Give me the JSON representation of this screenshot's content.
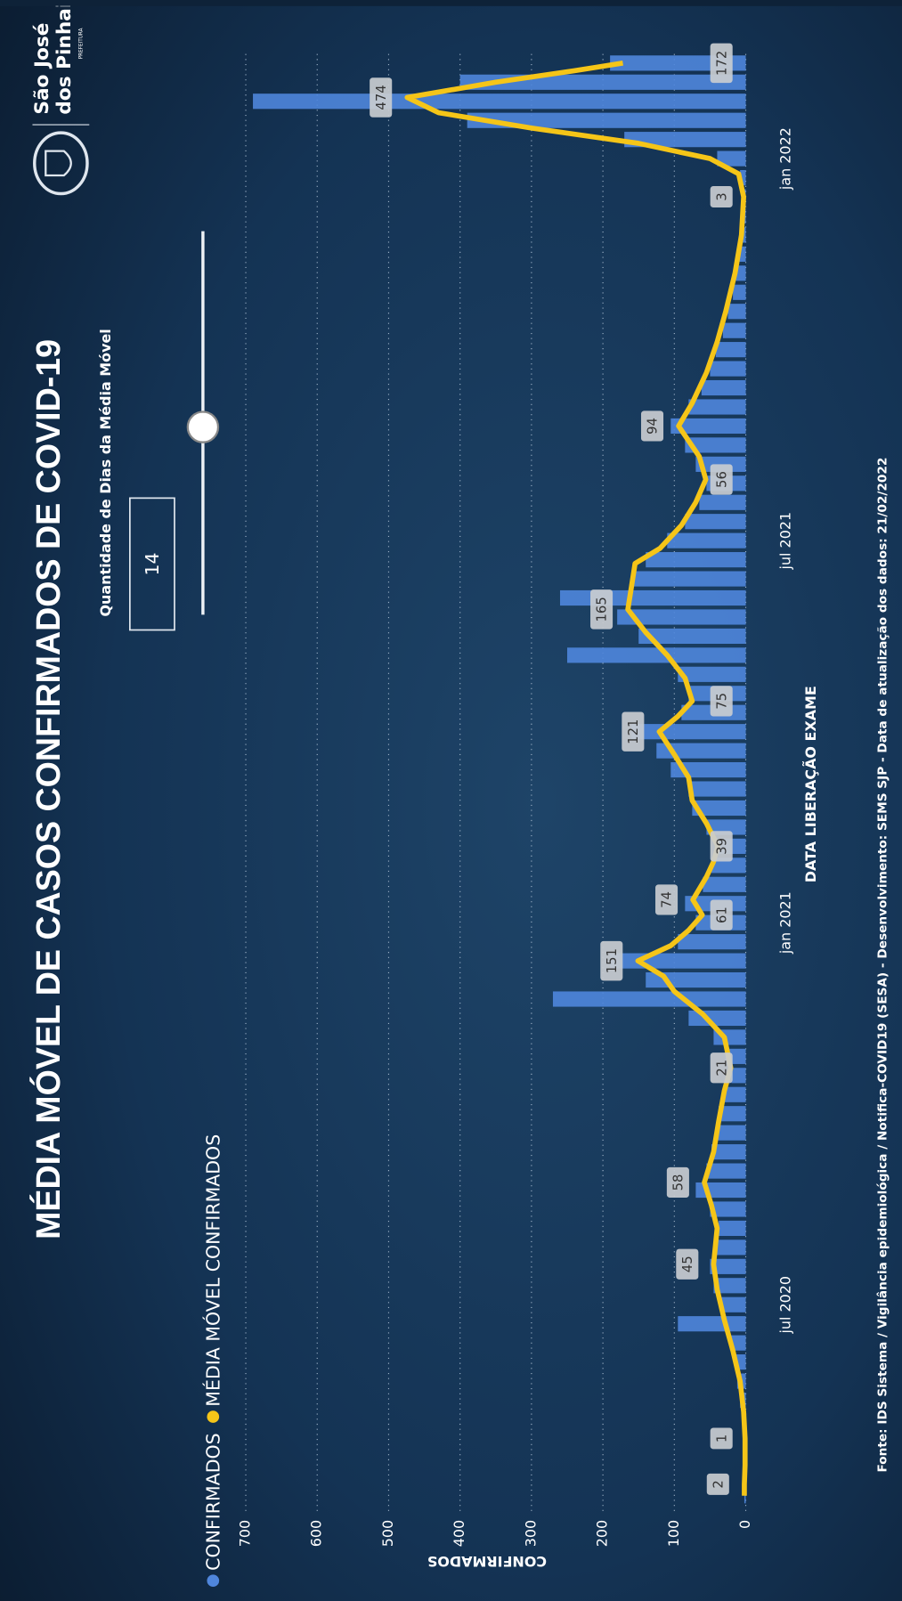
{
  "header": {
    "logo": {
      "line1": "São José",
      "line2": "dos Pinhais",
      "sub": "PREFEITURA"
    }
  },
  "controls": {
    "slider_label": "Quantidade de Dias da Média Móvel",
    "slider_value": 14
  },
  "footer": "Fonte: IDS Sistema / Vigilância epidemiológica / Notifica-COVID19 (SESA) - Desenvolvimento: SEMS SJP - Data de atualização dos dados: 21/02/2022",
  "chart_data": {
    "type": "bar-line",
    "title": "MÉDIA MÓVEL DE CASOS CONFIRMADOS DE COVID-19",
    "x_label": "DATA LIBERAÇÃO EXAME",
    "y_label": "CONFIRMADOS",
    "xlim": [
      2020.23,
      2022.14
    ],
    "xticks": [
      {
        "value": 2020.5,
        "label": "jul 2020"
      },
      {
        "value": 2021,
        "label": "jan 2021"
      },
      {
        "value": 2021.5,
        "label": "jul 2021"
      },
      {
        "value": 2022,
        "label": "jan 2022"
      }
    ],
    "ylim": [
      0,
      760
    ],
    "yticks": [
      0,
      100,
      200,
      300,
      400,
      500,
      600,
      700
    ],
    "grid": true,
    "series": [
      {
        "name": "CONFIRMADOS",
        "type": "bar",
        "color": "#4f86dc",
        "x": [
          2020.25,
          2020.275,
          2020.3,
          2020.325,
          2020.35,
          2020.375,
          2020.4,
          2020.425,
          2020.45,
          2020.475,
          2020.5,
          2020.525,
          2020.55,
          2020.575,
          2020.6,
          2020.625,
          2020.65,
          2020.675,
          2020.7,
          2020.725,
          2020.75,
          2020.775,
          2020.8,
          2020.825,
          2020.85,
          2020.875,
          2020.9,
          2020.925,
          2020.95,
          2020.975,
          2021,
          2021.025,
          2021.05,
          2021.075,
          2021.1,
          2021.125,
          2021.15,
          2021.175,
          2021.2,
          2021.225,
          2021.25,
          2021.275,
          2021.3,
          2021.325,
          2021.35,
          2021.375,
          2021.4,
          2021.425,
          2021.45,
          2021.475,
          2021.5,
          2021.525,
          2021.55,
          2021.575,
          2021.6,
          2021.625,
          2021.65,
          2021.675,
          2021.7,
          2021.725,
          2021.75,
          2021.775,
          2021.8,
          2021.825,
          2021.85,
          2021.875,
          2021.9,
          2021.925,
          2021.95,
          2021.975,
          2022,
          2022.025,
          2022.05,
          2022.075,
          2022.1,
          2022.125
        ],
        "values": [
          2,
          3,
          1,
          2,
          5,
          8,
          12,
          15,
          22,
          95,
          35,
          45,
          50,
          42,
          38,
          50,
          70,
          55,
          48,
          40,
          38,
          30,
          20,
          28,
          45,
          80,
          270,
          140,
          190,
          95,
          70,
          85,
          60,
          48,
          40,
          55,
          75,
          80,
          105,
          125,
          160,
          90,
          80,
          95,
          250,
          150,
          180,
          260,
          160,
          140,
          110,
          85,
          65,
          55,
          70,
          85,
          105,
          80,
          62,
          50,
          42,
          32,
          25,
          18,
          14,
          9,
          6,
          4,
          3,
          8,
          40,
          170,
          390,
          690,
          400,
          190
        ]
      },
      {
        "name": "MÉDIA MÓVEL CONFIRMADOS",
        "type": "line",
        "color": "#f5c518",
        "x": [
          2020.25,
          2020.265,
          2020.29,
          2020.325,
          2020.36,
          2020.4,
          2020.44,
          2020.48,
          2020.52,
          2020.553,
          2020.6,
          2020.63,
          2020.66,
          2020.7,
          2020.74,
          2020.78,
          2020.81,
          2020.85,
          2020.88,
          2020.91,
          2020.93,
          2020.95,
          2020.97,
          2020.99,
          2021.01,
          2021.03,
          2021.06,
          2021.08,
          2021.1,
          2021.13,
          2021.16,
          2021.19,
          2021.22,
          2021.25,
          2021.27,
          2021.29,
          2021.32,
          2021.35,
          2021.38,
          2021.41,
          2021.44,
          2021.47,
          2021.49,
          2021.52,
          2021.55,
          2021.58,
          2021.61,
          2021.65,
          2021.68,
          2021.72,
          2021.76,
          2021.8,
          2021.85,
          2021.9,
          2021.95,
          2021.98,
          2022,
          2022.02,
          2022.04,
          2022.06,
          2022.08,
          2022.1,
          2022.115,
          2022.125
        ],
        "values": [
          2,
          2,
          1,
          1,
          3,
          8,
          18,
          30,
          40,
          45,
          40,
          48,
          58,
          45,
          38,
          30,
          21,
          30,
          60,
          100,
          115,
          151,
          105,
          80,
          61,
          74,
          55,
          45,
          39,
          55,
          75,
          80,
          100,
          121,
          95,
          75,
          85,
          110,
          140,
          165,
          160,
          155,
          120,
          90,
          70,
          56,
          65,
          94,
          75,
          55,
          40,
          28,
          15,
          6,
          3,
          10,
          50,
          150,
          300,
          430,
          474,
          350,
          240,
          172
        ]
      }
    ],
    "data_labels": [
      {
        "x": 2020.265,
        "value": 2
      },
      {
        "x": 2020.325,
        "value": 1
      },
      {
        "x": 2020.553,
        "value": 45
      },
      {
        "x": 2020.66,
        "value": 58
      },
      {
        "x": 2020.81,
        "value": 21
      },
      {
        "x": 2020.95,
        "value": 151
      },
      {
        "x": 2021.01,
        "value": 61
      },
      {
        "x": 2021.03,
        "value": 74
      },
      {
        "x": 2021.1,
        "value": 39
      },
      {
        "x": 2021.25,
        "value": 121
      },
      {
        "x": 2021.29,
        "value": 75
      },
      {
        "x": 2021.41,
        "value": 165
      },
      {
        "x": 2021.58,
        "value": 56
      },
      {
        "x": 2021.65,
        "value": 94
      },
      {
        "x": 2021.95,
        "value": 3
      },
      {
        "x": 2022.08,
        "value": 474
      },
      {
        "x": 2022.125,
        "value": 172
      }
    ]
  }
}
